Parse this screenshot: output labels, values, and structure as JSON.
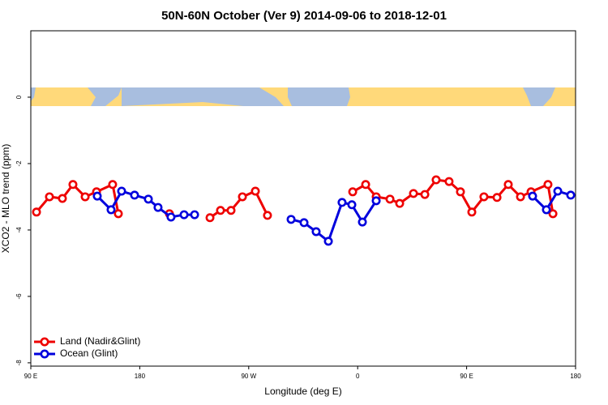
{
  "chart_data": {
    "type": "line",
    "title": "50N-60N October (Ver 9)   2014-09-06 to 2018-12-01",
    "x_label": "Longitude (deg E)",
    "y_label": "XCO2 - MLO trend (ppm)",
    "xlim": [
      90,
      540
    ],
    "ylim": [
      -8.1,
      2
    ],
    "xticks": [
      {
        "value": 90,
        "label": "90 E"
      },
      180,
      {
        "value": 270,
        "label": "90 W"
      },
      {
        "value": 360,
        "label": "0"
      },
      {
        "value": 450,
        "label": "90 E"
      },
      {
        "value": 540,
        "label": "180"
      }
    ],
    "yticks": [
      0,
      -2,
      -4,
      -6,
      -8
    ],
    "legend": "bottom-left",
    "series": [
      {
        "name": "Land (Nadir&Glint)",
        "color": "#ee0000",
        "x": [
          94.7,
          105.4,
          116.1,
          124.8,
          134.9,
          144.3,
          157.6,
          162.3,
          null,
          204.5,
          null,
          238.0,
          246.7,
          255.4,
          264.8,
          275.5,
          285.5,
          null,
          355.9,
          366.6,
          375.3,
          386.7,
          394.7,
          406.1,
          415.5,
          424.8,
          435.5,
          444.9,
          454.3,
          464.3,
          475.1,
          484.4,
          494.5,
          503.2,
          517.2,
          521.3
        ],
        "values": [
          -3.46,
          -3.0,
          -3.05,
          -2.63,
          -3.0,
          -2.85,
          -2.63,
          -3.51,
          null,
          -3.51,
          null,
          -3.63,
          -3.41,
          -3.41,
          -3.0,
          -2.83,
          -3.56,
          null,
          -2.85,
          -2.63,
          -3.0,
          -3.07,
          -3.2,
          -2.9,
          -2.93,
          -2.49,
          -2.54,
          -2.85,
          -3.46,
          -3.0,
          -3.02,
          -2.63,
          -3.0,
          -2.85,
          -2.63,
          -3.51
        ]
      },
      {
        "name": "Ocean (Glint)",
        "color": "#0000dd",
        "x": [
          144.9,
          156.3,
          165.0,
          175.7,
          187.1,
          195.1,
          205.8,
          216.6,
          225.3,
          null,
          305.0,
          315.7,
          325.7,
          335.8,
          347.1,
          355.2,
          363.9,
          375.3,
          null,
          504.5,
          515.9,
          525.3,
          536.0
        ],
        "values": [
          -2.98,
          -3.39,
          -2.83,
          -2.95,
          -3.07,
          -3.32,
          -3.61,
          -3.54,
          -3.54,
          null,
          -3.68,
          -3.78,
          -4.05,
          -4.34,
          -3.17,
          -3.24,
          -3.76,
          -3.12,
          null,
          -2.98,
          -3.39,
          -2.83,
          -2.95
        ]
      }
    ]
  }
}
